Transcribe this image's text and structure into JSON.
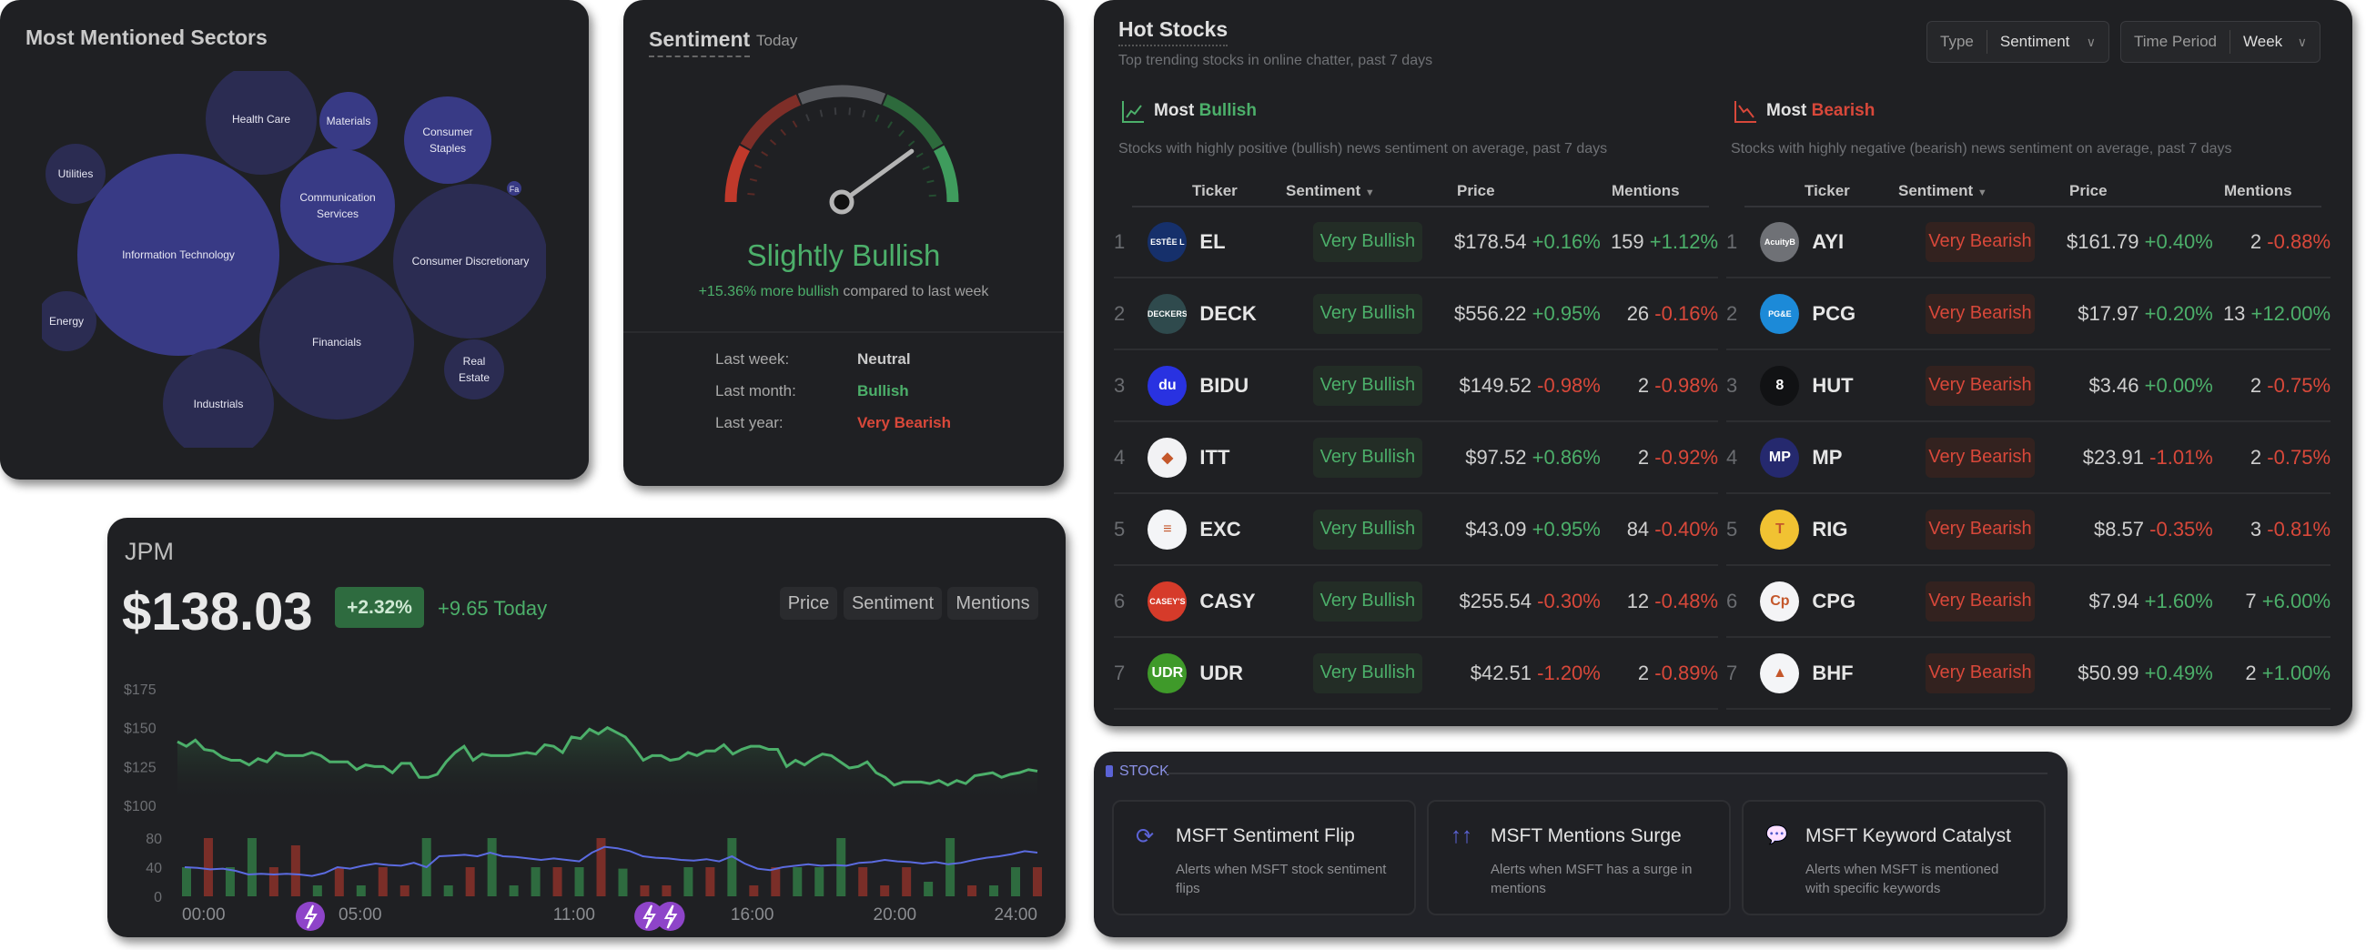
{
  "sectors": {
    "title": "Most Mentioned Sectors",
    "colors": {
      "bright": "#383a85",
      "dark": "#2b2c52"
    },
    "bubbles": [
      {
        "label": [
          "Information Technology"
        ],
        "shade": "bright"
      },
      {
        "label": [
          "Health Care"
        ],
        "shade": "dark"
      },
      {
        "label": [
          "Materials"
        ],
        "shade": "bright"
      },
      {
        "label": [
          "Consumer",
          "Staples"
        ],
        "shade": "bright"
      },
      {
        "label": [
          "Utilities"
        ],
        "shade": "dark"
      },
      {
        "label": [
          "Communication",
          "Services"
        ],
        "shade": "bright"
      },
      {
        "label": [
          "Consumer Discretionary"
        ],
        "shade": "dark"
      },
      {
        "label": [
          "Fa"
        ],
        "shade": "bright"
      },
      {
        "label": [
          "Energy"
        ],
        "shade": "dark"
      },
      {
        "label": [
          "Financials"
        ],
        "shade": "dark"
      },
      {
        "label": [
          "Industrials"
        ],
        "shade": "dark"
      },
      {
        "label": [
          "Real",
          "Estate"
        ],
        "shade": "dark"
      }
    ]
  },
  "sentiment": {
    "title": "Sentiment",
    "period": "Today",
    "gauge_value": 0.6,
    "reading": "Slightly Bullish",
    "change": "+15.36% more bullish",
    "change_suffix": "compared to last week",
    "history": [
      {
        "label": "Last week:",
        "value": "Neutral",
        "tone": "neutral"
      },
      {
        "label": "Last month:",
        "value": "Bullish",
        "tone": "bull"
      },
      {
        "label": "Last year:",
        "value": "Very Bearish",
        "tone": "bear"
      }
    ]
  },
  "jpm": {
    "ticker": "JPM",
    "price": "$138.03",
    "pct": "+2.32%",
    "today": "+9.65 Today",
    "buttons": [
      "Price",
      "Sentiment",
      "Mentions"
    ],
    "y_ticks": [
      "$175",
      "$150",
      "$125",
      "$100"
    ],
    "m_ticks": [
      "80",
      "40",
      "0"
    ],
    "x_ticks": [
      "00:00",
      "05:00",
      "11:00",
      "16:00",
      "20:00",
      "24:00"
    ],
    "price_series": [
      141,
      138,
      142,
      136,
      135,
      131,
      129,
      129,
      126,
      130,
      128,
      134,
      132,
      132,
      132,
      134,
      132,
      128,
      128,
      128,
      123,
      126,
      125,
      125,
      121,
      127,
      127,
      118,
      118,
      120,
      128,
      134,
      138,
      129,
      133,
      132,
      132,
      132,
      133,
      134,
      133,
      139,
      138,
      134,
      144,
      143,
      149,
      146,
      150,
      147,
      144,
      137,
      129,
      132,
      132,
      129,
      130,
      134,
      132,
      135,
      135,
      139,
      133,
      136,
      138,
      138,
      136,
      136,
      125,
      129,
      126,
      130,
      133,
      132,
      128,
      124,
      125,
      128,
      121,
      118,
      113,
      115,
      115,
      115,
      114,
      116,
      113,
      116,
      114,
      119,
      120,
      121,
      118,
      120,
      121,
      123,
      122
    ],
    "mentions_series": [
      40,
      39,
      37,
      38,
      35,
      30,
      31,
      30,
      31,
      30,
      28,
      32,
      40,
      38,
      42,
      45,
      43,
      42,
      46,
      40,
      55,
      56,
      57,
      55,
      60,
      55,
      54,
      52,
      50,
      52,
      50,
      48,
      60,
      68,
      66,
      62,
      55,
      53,
      52,
      50,
      49,
      51,
      48,
      55,
      45,
      38,
      36,
      40,
      42,
      44,
      42,
      43,
      42,
      46,
      47,
      50,
      48,
      47,
      45,
      47,
      44,
      46,
      50,
      53,
      55,
      58,
      62,
      60
    ],
    "bars": [
      [
        40,
        "g"
      ],
      [
        80,
        "r"
      ],
      [
        40,
        "g"
      ],
      [
        80,
        "g"
      ],
      [
        40,
        "r"
      ],
      [
        70,
        "r"
      ],
      [
        15,
        "g"
      ],
      [
        40,
        "r"
      ],
      [
        15,
        "g"
      ],
      [
        40,
        "r"
      ],
      [
        15,
        "r"
      ],
      [
        80,
        "g"
      ],
      [
        15,
        "g"
      ],
      [
        40,
        "r"
      ],
      [
        80,
        "g"
      ],
      [
        15,
        "g"
      ],
      [
        40,
        "g"
      ],
      [
        40,
        "r"
      ],
      [
        40,
        "g"
      ],
      [
        80,
        "r"
      ],
      [
        38,
        "g"
      ],
      [
        15,
        "r"
      ],
      [
        15,
        "r"
      ],
      [
        40,
        "g"
      ],
      [
        40,
        "r"
      ],
      [
        80,
        "g"
      ],
      [
        15,
        "r"
      ],
      [
        40,
        "r"
      ],
      [
        40,
        "g"
      ],
      [
        40,
        "g"
      ],
      [
        80,
        "g"
      ],
      [
        40,
        "r"
      ],
      [
        15,
        "r"
      ],
      [
        40,
        "r"
      ],
      [
        20,
        "g"
      ],
      [
        80,
        "g"
      ],
      [
        15,
        "r"
      ],
      [
        15,
        "g"
      ],
      [
        40,
        "g"
      ],
      [
        40,
        "r"
      ]
    ],
    "event_hours": [
      3.6,
      13.1,
      13.7
    ],
    "colors": {
      "price": "#4caf6a",
      "mentions": "#5b6be0",
      "bar_green": "#2e6b3f",
      "bar_red": "#7a2e28",
      "event": "#8e44c9"
    }
  },
  "hot": {
    "title": "Hot Stocks",
    "subtitle": "Top trending stocks in online chatter, past 7 days",
    "type_label": "Type",
    "type_value": "Sentiment",
    "period_label": "Time Period",
    "period_value": "Week",
    "columns": [
      "Ticker",
      "Sentiment",
      "Price",
      "Mentions"
    ],
    "bull": {
      "pre": "Most",
      "word": "Bullish",
      "desc": "Stocks with highly positive (bullish) news sentiment on average, past 7 days",
      "rows": [
        {
          "rank": "1",
          "ticker": "EL",
          "logo": "ESTĒE LAUDER",
          "logo_bg": "#16306b",
          "sent": "Very Bullish",
          "price": "$178.54",
          "pchg": "+0.16%",
          "ment": "159",
          "mchg": "+1.12%"
        },
        {
          "rank": "2",
          "ticker": "DECK",
          "logo": "DECKERS",
          "logo_bg": "#2f4a4d",
          "sent": "Very Bullish",
          "price": "$556.22",
          "pchg": "+0.95%",
          "ment": "26",
          "mchg": "-0.16%"
        },
        {
          "rank": "3",
          "ticker": "BIDU",
          "logo": "du",
          "logo_bg": "#2932e1",
          "sent": "Very Bullish",
          "price": "$149.52",
          "pchg": "-0.98%",
          "ment": "2",
          "mchg": "-0.98%"
        },
        {
          "rank": "4",
          "ticker": "ITT",
          "logo": "◆",
          "logo_bg": "#f2f2f4",
          "sent": "Very Bullish",
          "price": "$97.52",
          "pchg": "+0.86%",
          "ment": "2",
          "mchg": "-0.92%"
        },
        {
          "rank": "5",
          "ticker": "EXC",
          "logo": "≡",
          "logo_bg": "#f4f5f7",
          "sent": "Very Bullish",
          "price": "$43.09",
          "pchg": "+0.95%",
          "ment": "84",
          "mchg": "-0.40%"
        },
        {
          "rank": "6",
          "ticker": "CASY",
          "logo": "CASEY'S",
          "logo_bg": "#d63b2a",
          "sent": "Very Bullish",
          "price": "$255.54",
          "pchg": "-0.30%",
          "ment": "12",
          "mchg": "-0.48%"
        },
        {
          "rank": "7",
          "ticker": "UDR",
          "logo": "UDR",
          "logo_bg": "#3f9a2a",
          "sent": "Very Bullish",
          "price": "$42.51",
          "pchg": "-1.20%",
          "ment": "2",
          "mchg": "-0.89%"
        }
      ]
    },
    "bear": {
      "pre": "Most",
      "word": "Bearish",
      "desc": "Stocks with highly negative (bearish) news sentiment on average, past 7 days",
      "rows": [
        {
          "rank": "1",
          "ticker": "AYI",
          "logo": "AcuityBrands",
          "logo_bg": "#6f7176",
          "sent": "Very Bearish",
          "price": "$161.79",
          "pchg": "+0.40%",
          "ment": "2",
          "mchg": "-0.88%"
        },
        {
          "rank": "2",
          "ticker": "PCG",
          "logo": "PG&E",
          "logo_bg": "#1c8ad8",
          "sent": "Very Bearish",
          "price": "$17.97",
          "pchg": "+0.20%",
          "ment": "13",
          "mchg": "+12.00%"
        },
        {
          "rank": "3",
          "ticker": "HUT",
          "logo": "8",
          "logo_bg": "#111214",
          "sent": "Very Bearish",
          "price": "$3.46",
          "pchg": "+0.00%",
          "ment": "2",
          "mchg": "-0.75%"
        },
        {
          "rank": "4",
          "ticker": "MP",
          "logo": "MP",
          "logo_bg": "#25296e",
          "sent": "Very Bearish",
          "price": "$23.91",
          "pchg": "-1.01%",
          "ment": "2",
          "mchg": "-0.75%"
        },
        {
          "rank": "5",
          "ticker": "RIG",
          "logo": "T",
          "logo_bg": "#f1c232",
          "sent": "Very Bearish",
          "price": "$8.57",
          "pchg": "-0.35%",
          "ment": "3",
          "mchg": "-0.81%"
        },
        {
          "rank": "6",
          "ticker": "CPG",
          "logo": "Cp",
          "logo_bg": "#f4f4f6",
          "sent": "Very Bearish",
          "price": "$7.94",
          "pchg": "+1.60%",
          "ment": "7",
          "mchg": "+6.00%"
        },
        {
          "rank": "7",
          "ticker": "BHF",
          "logo": "▲",
          "logo_bg": "#f4f5f7",
          "sent": "Very Bearish",
          "price": "$50.99",
          "pchg": "+0.49%",
          "ment": "2",
          "mchg": "+1.00%"
        }
      ]
    }
  },
  "alerts": {
    "section": "STOCK",
    "items": [
      {
        "icon": "refresh-icon",
        "glyph": "⟳",
        "title": "MSFT Sentiment Flip",
        "desc": "Alerts when MSFT stock sentiment flips"
      },
      {
        "icon": "arrows-up-icon",
        "glyph": "↑↑",
        "title": "MSFT Mentions Surge",
        "desc": "Alerts when MSFT has a surge in mentions"
      },
      {
        "icon": "chat-bubble-icon",
        "glyph": "💬",
        "title": "MSFT Keyword Catalyst",
        "desc": "Alerts when MSFT is mentioned with specific keywords"
      }
    ]
  }
}
